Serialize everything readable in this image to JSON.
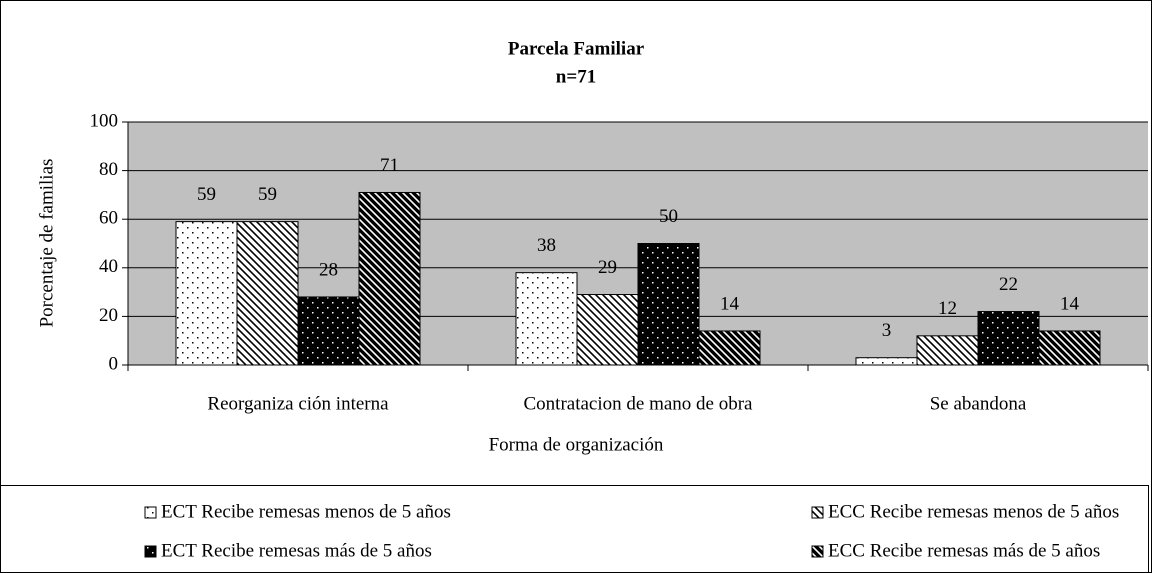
{
  "chart_data": {
    "type": "bar",
    "title": "Parcela Familiar",
    "subtitle": "n=71",
    "x_label": "Forma de organización",
    "y_label": "Porcentaje de familias",
    "categories": [
      "Reorganiza ción interna",
      "Contratacion de mano de obra",
      "Se abandona"
    ],
    "series": [
      {
        "name": "ECT Recibe remesas menos de 5 años",
        "color": "#ffffff",
        "pattern": "dots",
        "values": [
          59,
          38,
          3
        ]
      },
      {
        "name": "ECC Recibe remesas menos de 5 años",
        "color": "#ffffff",
        "pattern": "diagonal",
        "values": [
          59,
          29,
          12
        ]
      },
      {
        "name": "ECT Recibe remesas más de 5 años",
        "color": "#000000",
        "pattern": "dots",
        "values": [
          28,
          50,
          22
        ]
      },
      {
        "name": "ECC Recibe remesas más de 5 años",
        "color": "#000000",
        "pattern": "diagonal",
        "values": [
          71,
          14,
          14
        ]
      }
    ],
    "ylim": [
      0,
      100
    ],
    "yticks": [
      0,
      20,
      40,
      60,
      80,
      100
    ],
    "grid": true,
    "plot_background": "#c0c0c0",
    "legend": "bottom"
  }
}
